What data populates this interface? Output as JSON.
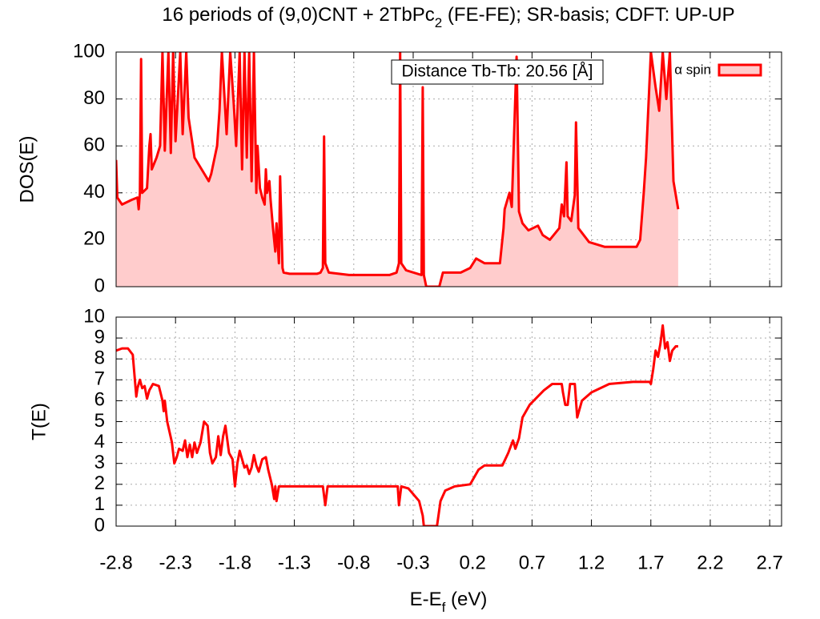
{
  "chart_data": [
    {
      "type": "area",
      "title": "16 periods of (9,0)CNT + 2TbPc",
      "title_subscript": "2",
      "title_suffix": " (FE-FE); SR-basis; CDFT: UP-UP",
      "ylabel": "DOS(E)",
      "annotation": "Distance Tb-Tb: 20.56 [Å]",
      "legend": "top-right",
      "grid": true,
      "xlim": [
        -2.8,
        2.8
      ],
      "ylim": [
        0,
        100
      ],
      "yticks": [
        0,
        20,
        40,
        60,
        80,
        100
      ],
      "x": [
        -2.8,
        -2.79,
        -2.75,
        -2.67,
        -2.62,
        -2.61,
        -2.6,
        -2.59,
        -2.58,
        -2.54,
        -2.52,
        -2.51,
        -2.5,
        -2.46,
        -2.43,
        -2.41,
        -2.39,
        -2.36,
        -2.34,
        -2.32,
        -2.3,
        -2.26,
        -2.24,
        -2.21,
        -2.19,
        -2.14,
        -2.02,
        -2.0,
        -1.95,
        -1.93,
        -1.91,
        -1.87,
        -1.84,
        -1.81,
        -1.79,
        -1.76,
        -1.74,
        -1.72,
        -1.7,
        -1.68,
        -1.66,
        -1.64,
        -1.62,
        -1.61,
        -1.59,
        -1.57,
        -1.55,
        -1.54,
        -1.53,
        -1.51,
        -1.5,
        -1.48,
        -1.46,
        -1.45,
        -1.43,
        -1.42,
        -1.4,
        -1.39,
        -1.34,
        -1.11,
        -1.08,
        -1.06,
        -1.05,
        -1.04,
        -1.01,
        -0.84,
        -0.5,
        -0.44,
        -0.42,
        -0.41,
        -0.4,
        -0.36,
        -0.23,
        -0.22,
        -0.21,
        -0.19,
        -0.08,
        -0.05,
        0.1,
        0.18,
        0.23,
        0.3,
        0.43,
        0.44,
        0.46,
        0.47,
        0.51,
        0.53,
        0.57,
        0.59,
        0.62,
        0.67,
        0.75,
        0.79,
        0.85,
        0.93,
        0.95,
        0.97,
        0.99,
        1.0,
        1.03,
        1.06,
        1.07,
        1.09,
        1.18,
        1.31,
        1.58,
        1.61,
        1.64,
        1.66,
        1.7,
        1.74,
        1.77,
        1.8,
        1.83,
        1.86,
        1.89,
        1.93
      ],
      "series": [
        {
          "name": "α spin",
          "color": "#ff0000",
          "fill": "#ffcccc",
          "values": [
            54,
            38,
            35,
            37,
            38,
            33,
            40,
            97,
            40,
            42,
            60,
            65,
            50,
            55,
            60,
            100,
            58,
            100,
            57,
            100,
            62,
            100,
            65,
            100,
            72,
            55,
            45,
            48,
            60,
            75,
            100,
            65,
            100,
            78,
            60,
            100,
            50,
            100,
            55,
            100,
            45,
            100,
            40,
            60,
            42,
            38,
            35,
            50,
            40,
            45,
            37,
            25,
            15,
            27,
            10,
            47,
            8,
            6,
            5.5,
            5.5,
            6,
            8,
            64,
            10,
            6,
            5,
            5,
            6,
            10,
            100,
            10,
            7,
            5,
            85,
            5,
            0,
            0,
            6,
            6,
            8,
            12,
            10,
            10,
            15,
            25,
            33,
            40,
            34,
            98,
            32,
            27,
            24,
            26,
            22,
            20,
            25,
            35,
            30,
            53,
            30,
            28,
            39,
            70,
            25,
            19,
            17,
            17,
            20,
            40,
            55,
            100,
            85,
            75,
            100,
            80,
            100,
            45,
            33
          ]
        }
      ]
    },
    {
      "type": "line",
      "ylabel": "T(E)",
      "xlabel": "E-E",
      "xlabel_subscript": "f",
      "xlabel_suffix": " (eV)",
      "grid": true,
      "xlim": [
        -2.8,
        2.8
      ],
      "xticks": [
        -2.8,
        -2.3,
        -1.8,
        -1.3,
        -0.8,
        -0.3,
        0.2,
        0.7,
        1.2,
        1.7,
        2.2,
        2.7
      ],
      "ylim": [
        0,
        10
      ],
      "yticks": [
        0,
        1,
        2,
        3,
        4,
        5,
        6,
        7,
        8,
        9,
        10
      ],
      "x": [
        -2.8,
        -2.75,
        -2.7,
        -2.66,
        -2.63,
        -2.62,
        -2.6,
        -2.58,
        -2.56,
        -2.54,
        -2.52,
        -2.49,
        -2.44,
        -2.41,
        -2.4,
        -2.39,
        -2.37,
        -2.33,
        -2.31,
        -2.29,
        -2.27,
        -2.24,
        -2.22,
        -2.2,
        -2.18,
        -2.16,
        -2.14,
        -2.12,
        -2.09,
        -2.06,
        -2.03,
        -2.01,
        -1.99,
        -1.96,
        -1.94,
        -1.92,
        -1.9,
        -1.88,
        -1.85,
        -1.82,
        -1.8,
        -1.78,
        -1.76,
        -1.74,
        -1.72,
        -1.7,
        -1.68,
        -1.66,
        -1.64,
        -1.62,
        -1.6,
        -1.57,
        -1.54,
        -1.52,
        -1.49,
        -1.47,
        -1.46,
        -1.45,
        -1.43,
        -1.06,
        -1.04,
        -1.02,
        -0.43,
        -0.42,
        -0.4,
        -0.34,
        -0.25,
        -0.22,
        -0.21,
        -0.1,
        -0.07,
        -0.03,
        0.05,
        0.18,
        0.25,
        0.3,
        0.45,
        0.5,
        0.54,
        0.56,
        0.59,
        0.62,
        0.68,
        0.8,
        0.87,
        0.95,
        0.96,
        0.98,
        1.0,
        1.02,
        1.06,
        1.08,
        1.12,
        1.2,
        1.35,
        1.55,
        1.67,
        1.69,
        1.7,
        1.72,
        1.74,
        1.76,
        1.78,
        1.8,
        1.82,
        1.84,
        1.86,
        1.88,
        1.91,
        1.93
      ],
      "series": [
        {
          "name": "α spin",
          "color": "#ff0000",
          "values": [
            8.4,
            8.5,
            8.5,
            8.2,
            6.2,
            6.6,
            7.0,
            6.6,
            6.7,
            6.1,
            6.5,
            6.8,
            6.7,
            6.0,
            5.5,
            6.0,
            5.0,
            4.0,
            3.0,
            3.3,
            3.7,
            3.6,
            4.1,
            3.3,
            3.9,
            3.3,
            4.0,
            3.5,
            4.0,
            5.0,
            4.8,
            3.5,
            3.0,
            3.3,
            4.3,
            3.4,
            4.3,
            4.8,
            3.5,
            3.2,
            1.9,
            3.0,
            3.6,
            3.2,
            2.8,
            2.9,
            2.5,
            2.8,
            3.4,
            2.9,
            2.6,
            3.2,
            3.3,
            2.7,
            2.0,
            1.3,
            1.9,
            1.2,
            1.9,
            1.9,
            1.0,
            1.9,
            1.9,
            1.0,
            1.9,
            1.8,
            1.2,
            0.5,
            0,
            0,
            1.2,
            1.7,
            1.9,
            2.0,
            2.7,
            2.9,
            2.9,
            3.5,
            4.1,
            3.7,
            4.2,
            5.2,
            5.8,
            6.5,
            6.8,
            6.8,
            6.4,
            5.8,
            5.8,
            6.8,
            6.8,
            5.2,
            6.0,
            6.4,
            6.8,
            6.9,
            6.9,
            6.9,
            6.8,
            7.5,
            8.4,
            8.1,
            8.7,
            9.6,
            8.5,
            8.8,
            7.9,
            8.4,
            8.6,
            8.6
          ]
        }
      ]
    }
  ]
}
